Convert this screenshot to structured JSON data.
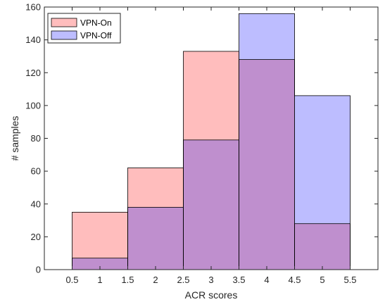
{
  "chart_data": {
    "type": "bar",
    "subtype": "overlapping-histogram",
    "bin_edges": [
      0.5,
      1.5,
      2.5,
      3.5,
      4.5,
      5.5
    ],
    "series": [
      {
        "name": "VPN-On",
        "values": [
          35,
          62,
          133,
          128,
          28
        ],
        "color": "#ffbdbd"
      },
      {
        "name": "VPN-Off",
        "values": [
          7,
          38,
          79,
          156,
          106
        ],
        "color": "#bdbdff"
      }
    ],
    "overlap_color": "#bf8fce",
    "xlabel": "ACR scores",
    "ylabel": "# samples",
    "xlim": [
      0,
      6
    ],
    "ylim": [
      0,
      160
    ],
    "xticks": [
      0.5,
      1,
      1.5,
      2,
      2.5,
      3,
      3.5,
      4,
      4.5,
      5,
      5.5
    ],
    "xtick_labels": [
      "0.5",
      "1",
      "1.5",
      "2",
      "2.5",
      "3",
      "3.5",
      "4",
      "4.5",
      "5",
      "5.5"
    ],
    "yticks": [
      0,
      20,
      40,
      60,
      80,
      100,
      120,
      140,
      160
    ],
    "ytick_labels": [
      "0",
      "20",
      "40",
      "60",
      "80",
      "100",
      "120",
      "140",
      "160"
    ],
    "grid": false,
    "legend_position": "top-left"
  }
}
